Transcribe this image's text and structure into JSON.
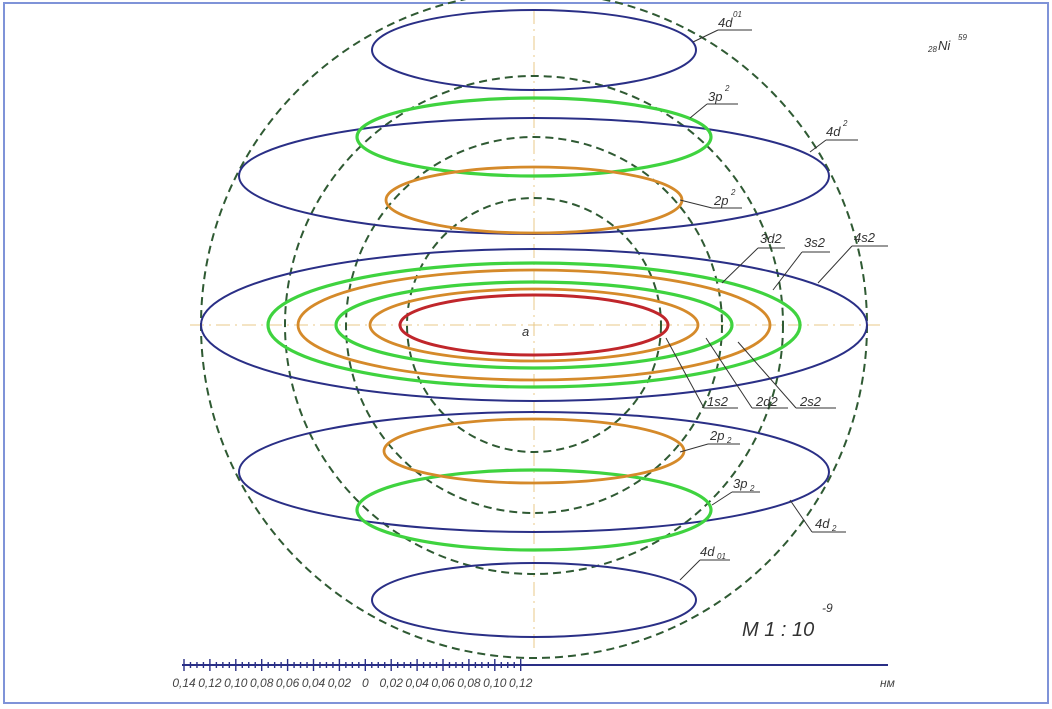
{
  "element": {
    "prefix": "28",
    "symbol": "Ni",
    "superscript": "59"
  },
  "center_label": "a",
  "scale": {
    "text": "M 1 : 10",
    "exponent": "-9"
  },
  "orbital_labels": {
    "d4_top": {
      "base": "4d",
      "sup": "01"
    },
    "p3_top": {
      "base": "3p",
      "sup": "2"
    },
    "d4_up": {
      "base": "4d",
      "sup": "2"
    },
    "p2_top": {
      "base": "2p",
      "sup": "2"
    },
    "d3_2": "3d2",
    "s3_2": "3s2",
    "s4_2": "4s2",
    "s1_2": "1s2",
    "d2_2": "2d2",
    "s2_2": "2s2",
    "p2_bot": {
      "base": "2p",
      "sub": "2"
    },
    "p3_bot": {
      "base": "3p",
      "sub": "2"
    },
    "d4_down": {
      "base": "4d",
      "sub": "2"
    },
    "d4_bot": {
      "base": "4d",
      "sub": "01"
    }
  },
  "axis": {
    "ticks": [
      "0,14",
      "0,12",
      "0,10",
      "0,08",
      "0,06",
      "0,04",
      "0,02",
      "0",
      "0,02",
      "0,04",
      "0,06",
      "0,08",
      "0,10",
      "0,12"
    ],
    "unit": "нм"
  },
  "colors": {
    "shell_dashed": "#2f5a33",
    "d_orbital": "#2a2f86",
    "p_orbital_green": "#3fd33f",
    "orange_orbital": "#d58a2a",
    "s1_orbital": "#c0262b",
    "guide": "#e8c98a",
    "frame": "#7f93d8"
  }
}
